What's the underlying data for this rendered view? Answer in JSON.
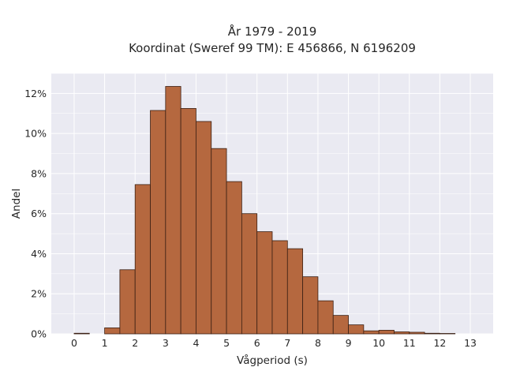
{
  "chart_data": {
    "type": "bar",
    "title": [
      "År 1979 - 2019",
      "Koordinat (Sweref 99 TM): E 456866, N 6196209"
    ],
    "xlabel": "Vågperiod (s)",
    "ylabel": "Andel",
    "xlim": [
      -0.75,
      13.75
    ],
    "ylim": [
      0,
      13
    ],
    "grid": true,
    "bar_color": "#b5683f",
    "bar_edge_color": "#3b2014",
    "plot_background": "#eaeaf2",
    "x_ticks": [
      0,
      1,
      2,
      3,
      4,
      5,
      6,
      7,
      8,
      9,
      10,
      11,
      12,
      13
    ],
    "y_ticks": [
      0,
      2,
      4,
      6,
      8,
      10,
      12
    ],
    "y_tick_labels": [
      "0%",
      "2%",
      "4%",
      "6%",
      "8%",
      "10%",
      "12%"
    ],
    "bin_width": 0.5,
    "bin_starts": [
      0,
      0.5,
      1,
      1.5,
      2,
      2.5,
      3,
      3.5,
      4,
      4.5,
      5,
      5.5,
      6,
      6.5,
      7,
      7.5,
      8,
      8.5,
      9,
      9.5,
      10,
      10.5,
      11,
      11.5,
      12,
      12.5
    ],
    "values": [
      0.03,
      0,
      0.3,
      3.2,
      7.45,
      11.15,
      12.35,
      11.25,
      10.6,
      9.25,
      7.6,
      6.0,
      5.1,
      4.65,
      4.25,
      2.85,
      1.65,
      0.92,
      0.45,
      0.15,
      0.18,
      0.1,
      0.08,
      0.03,
      0.02,
      0
    ]
  }
}
